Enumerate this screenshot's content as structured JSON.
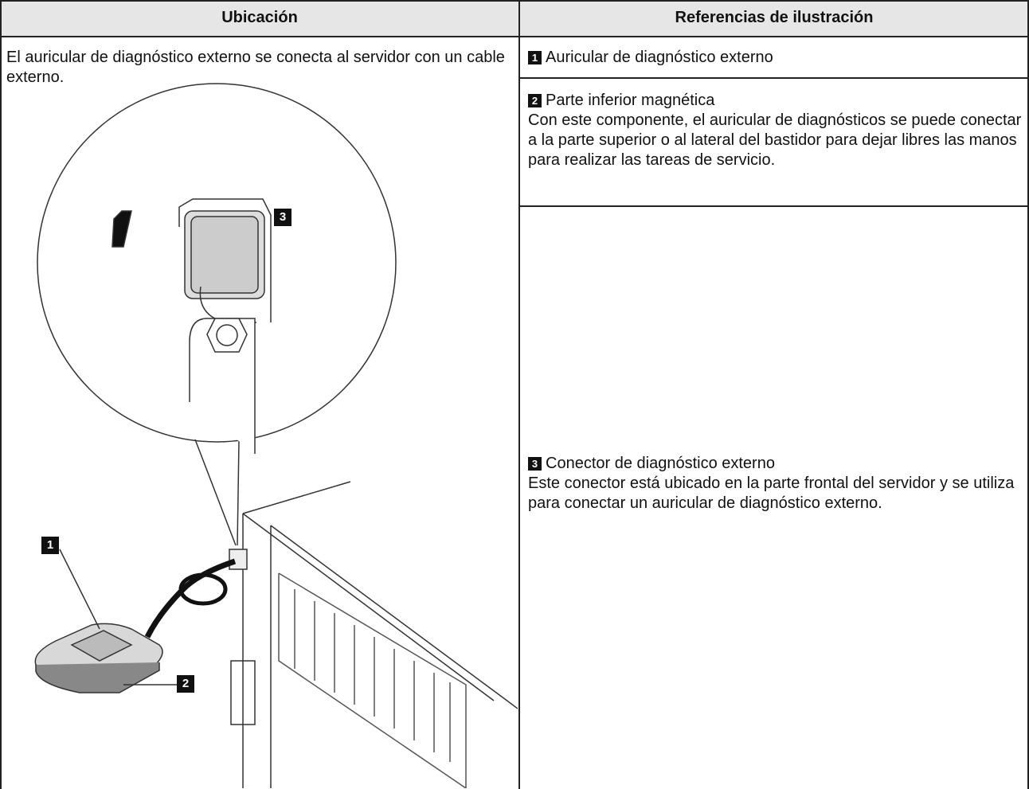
{
  "table": {
    "headers": [
      "Ubicación",
      "Referencias de ilustración"
    ],
    "location_text": "El auricular de diagnóstico externo se conecta al servidor con un cable externo.",
    "references": [
      {
        "number": "1",
        "title": "Auricular de diagnóstico externo"
      },
      {
        "number": "2",
        "title": "Parte inferior magnética",
        "description": "Con este componente, el auricular de diagnósticos se puede conectar a la parte superior o al lateral del bastidor para dejar libres las manos para realizar las tareas de servicio."
      },
      {
        "number": "3",
        "title": "Conector de diagnóstico externo",
        "description": "Este conector está ubicado en la parte frontal del servidor y se utiliza para conectar un auricular de diagnóstico externo."
      }
    ]
  }
}
